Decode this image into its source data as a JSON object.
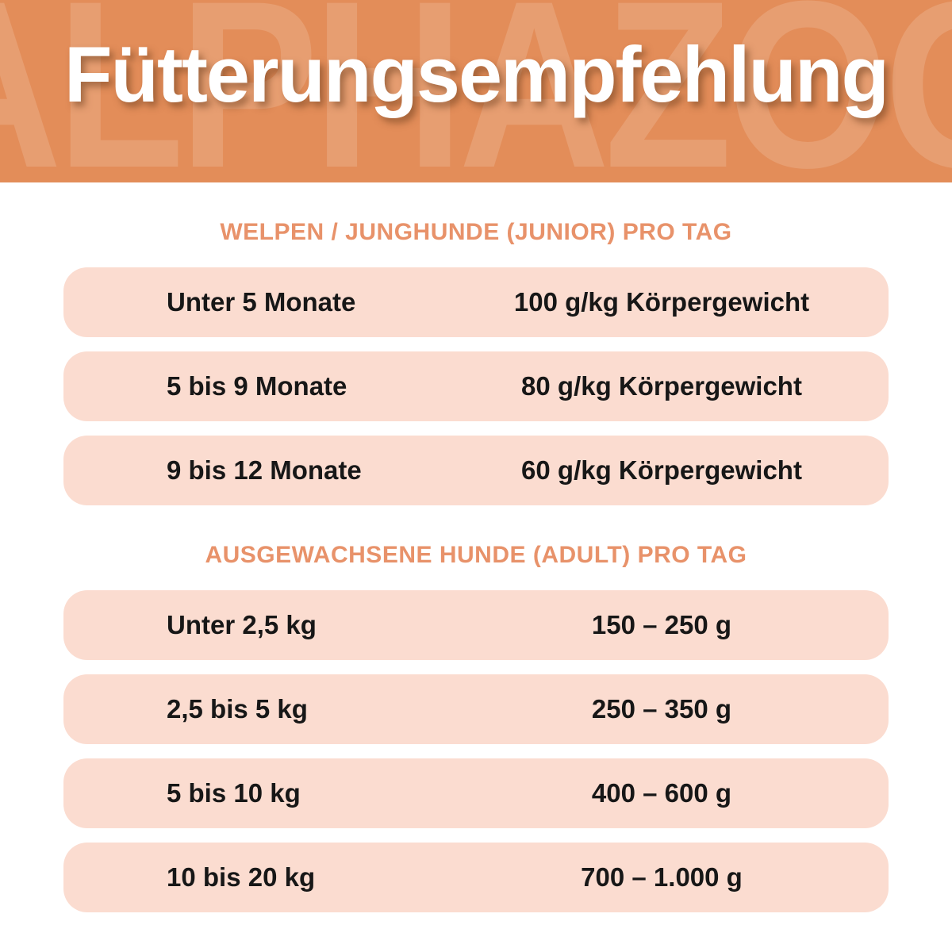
{
  "header": {
    "title": "Fütterungsempfehlung",
    "watermark": "ALPHAZOO",
    "bg_color": "#E38D59",
    "title_color": "#FFFFFF"
  },
  "colors": {
    "accent_orange": "#E8926A",
    "row_background": "#FBDCD0",
    "row_text": "#171717"
  },
  "sections": [
    {
      "heading": "WELPEN / JUNGHUNDE (JUNIOR) PRO TAG",
      "rows": [
        {
          "label": "Unter 5 Monate",
          "value": "100 g/kg Körpergewicht"
        },
        {
          "label": "5 bis 9 Monate",
          "value": "80 g/kg Körpergewicht"
        },
        {
          "label": "9 bis 12 Monate",
          "value": "60 g/kg Körpergewicht"
        }
      ]
    },
    {
      "heading": "AUSGEWACHSENE HUNDE (ADULT) PRO TAG",
      "rows": [
        {
          "label": "Unter 2,5 kg",
          "value": "150 – 250 g"
        },
        {
          "label": "2,5 bis 5 kg",
          "value": "250 – 350 g"
        },
        {
          "label": "5 bis 10 kg",
          "value": "400 – 600 g"
        },
        {
          "label": "10 bis 20 kg",
          "value": "700 – 1.000 g"
        }
      ]
    }
  ]
}
